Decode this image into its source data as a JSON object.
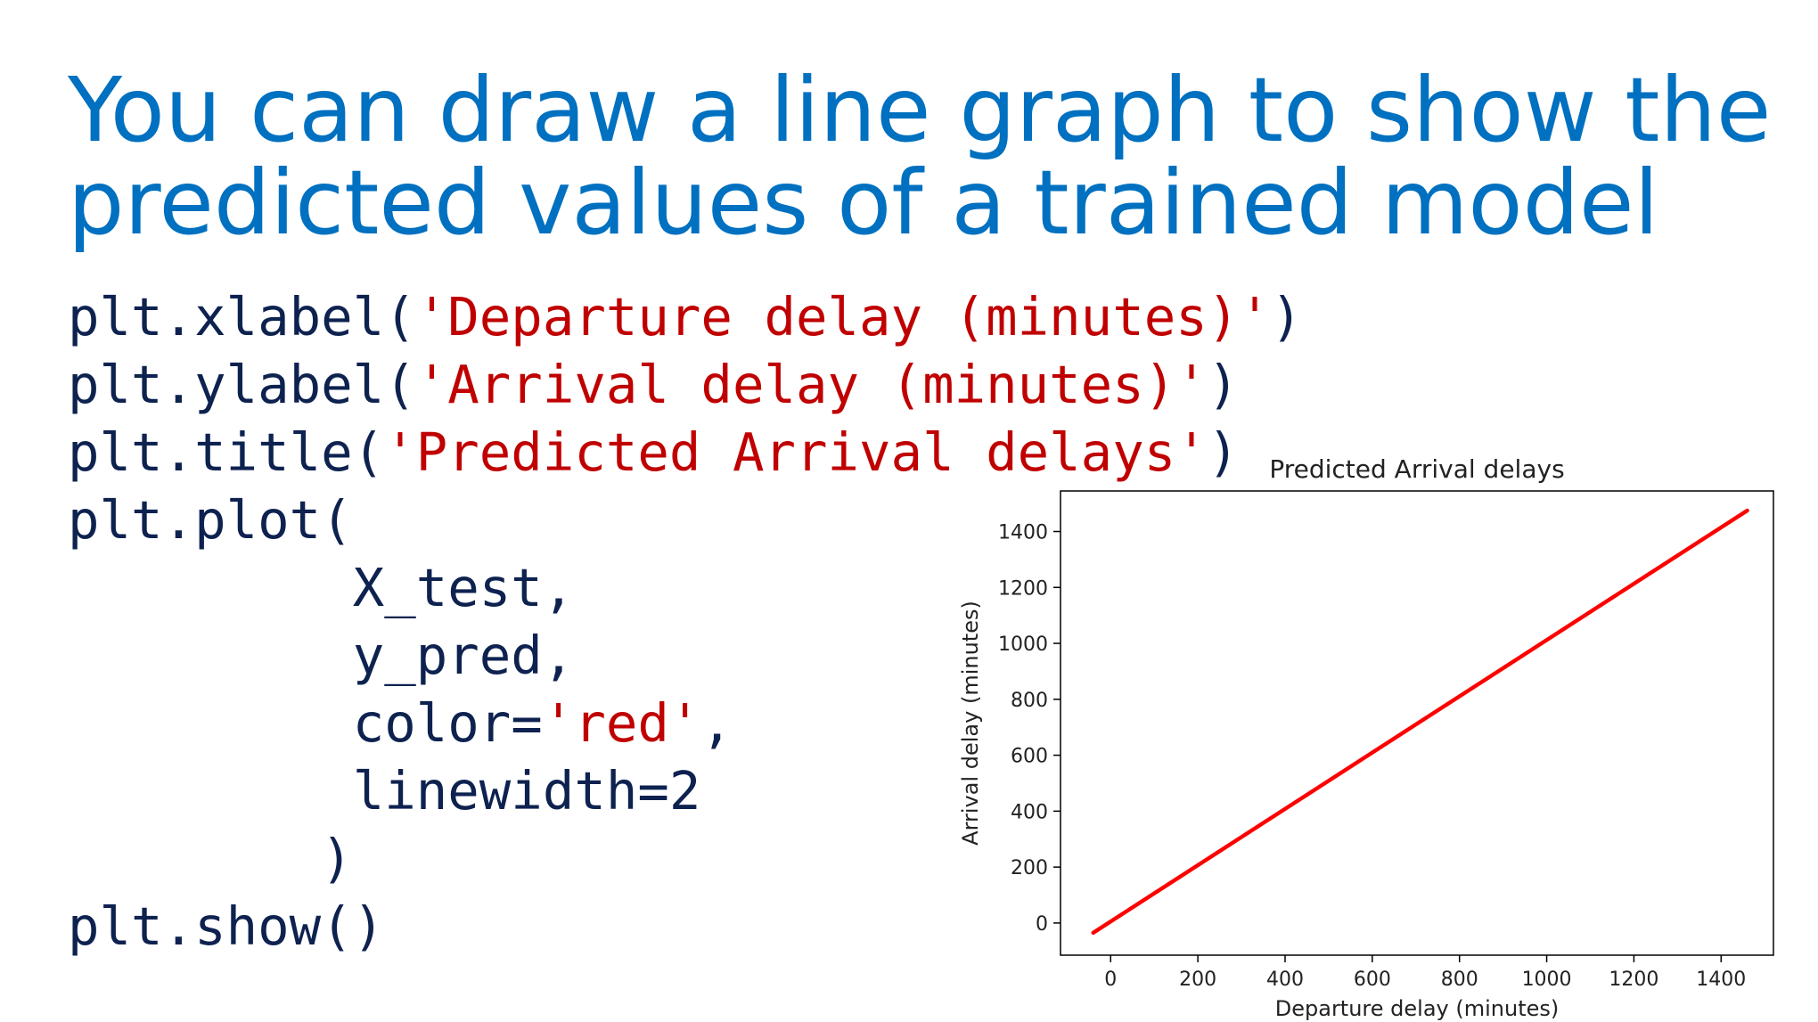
{
  "slide": {
    "title_lines": [
      "You can draw a line graph to show the",
      "predicted values of a trained model"
    ],
    "title_color": "#0070c0"
  },
  "code": {
    "colors": {
      "text": "#0e2250",
      "string": "#c00000"
    },
    "lines": [
      {
        "parts": [
          {
            "t": "plt.xlabel("
          },
          {
            "t": "'Departure delay (minutes)'",
            "s": true
          },
          {
            "t": ")"
          }
        ]
      },
      {
        "parts": [
          {
            "t": "plt.ylabel("
          },
          {
            "t": "'Arrival delay (minutes)'",
            "s": true
          },
          {
            "t": ")"
          }
        ]
      },
      {
        "parts": [
          {
            "t": "plt.title("
          },
          {
            "t": "'Predicted Arrival delays'",
            "s": true
          },
          {
            "t": ")"
          }
        ]
      },
      {
        "parts": [
          {
            "t": "plt.plot("
          }
        ]
      },
      {
        "parts": [
          {
            "t": "         X_test,"
          }
        ]
      },
      {
        "parts": [
          {
            "t": "         y_pred,"
          }
        ]
      },
      {
        "parts": [
          {
            "t": "         color="
          },
          {
            "t": "'red'",
            "s": true
          },
          {
            "t": ","
          }
        ]
      },
      {
        "parts": [
          {
            "t": "         linewidth=2"
          }
        ]
      },
      {
        "parts": [
          {
            "t": "        )"
          }
        ]
      },
      {
        "parts": [
          {
            "t": "plt.show()"
          }
        ]
      }
    ]
  },
  "chart_data": {
    "type": "line",
    "title": "Predicted Arrival delays",
    "xlabel": "Departure delay (minutes)",
    "ylabel": "Arrival delay (minutes)",
    "xlim": [
      -115,
      1520
    ],
    "ylim": [
      -115,
      1545
    ],
    "xticks": [
      0,
      200,
      400,
      600,
      800,
      1000,
      1200,
      1400
    ],
    "yticks": [
      0,
      200,
      400,
      600,
      800,
      1000,
      1200,
      1400
    ],
    "grid": false,
    "series": [
      {
        "color": "#ff0000",
        "linewidth": 2,
        "x": [
          -40,
          1460
        ],
        "y": [
          -35,
          1475
        ]
      }
    ]
  }
}
